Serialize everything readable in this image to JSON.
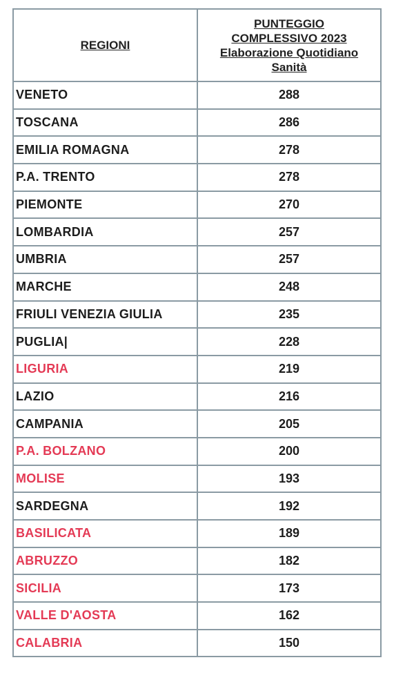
{
  "header": {
    "col_region": "REGIONI",
    "col_score_lines": [
      "PUNTEGGIO",
      "COMPLESSIVO 2023",
      "Elaborazione Quotidiano",
      "Sanità"
    ]
  },
  "colors": {
    "highlight": "#e43a55",
    "normal": "#1c1c1c",
    "border": "#8a9aa3"
  },
  "rows": [
    {
      "region": "VENETO",
      "score": "288",
      "highlight": false
    },
    {
      "region": "TOSCANA",
      "score": "286",
      "highlight": false
    },
    {
      "region": "EMILIA ROMAGNA",
      "score": "278",
      "highlight": false
    },
    {
      "region": "P.A. TRENTO",
      "score": "278",
      "highlight": false
    },
    {
      "region": "PIEMONTE",
      "score": "270",
      "highlight": false
    },
    {
      "region": "LOMBARDIA",
      "score": "257",
      "highlight": false
    },
    {
      "region": "UMBRIA",
      "score": "257",
      "highlight": false
    },
    {
      "region": "MARCHE",
      "score": "248",
      "highlight": false
    },
    {
      "region": "FRIULI VENEZIA GIULIA",
      "score": "235",
      "highlight": false
    },
    {
      "region": "PUGLIA|",
      "score": "228",
      "highlight": false
    },
    {
      "region": "LIGURIA",
      "score": "219",
      "highlight": true
    },
    {
      "region": "LAZIO",
      "score": "216",
      "highlight": false
    },
    {
      "region": "CAMPANIA",
      "score": "205",
      "highlight": false
    },
    {
      "region": "P.A. BOLZANO",
      "score": "200",
      "highlight": true
    },
    {
      "region": "MOLISE",
      "score": "193",
      "highlight": true
    },
    {
      "region": "SARDEGNA",
      "score": "192",
      "highlight": false
    },
    {
      "region": "BASILICATA",
      "score": "189",
      "highlight": true
    },
    {
      "region": "ABRUZZO",
      "score": "182",
      "highlight": true
    },
    {
      "region": "SICILIA",
      "score": "173",
      "highlight": true
    },
    {
      "region": "VALLE D'AOSTA",
      "score": "162",
      "highlight": true
    },
    {
      "region": "CALABRIA",
      "score": "150",
      "highlight": true
    }
  ]
}
